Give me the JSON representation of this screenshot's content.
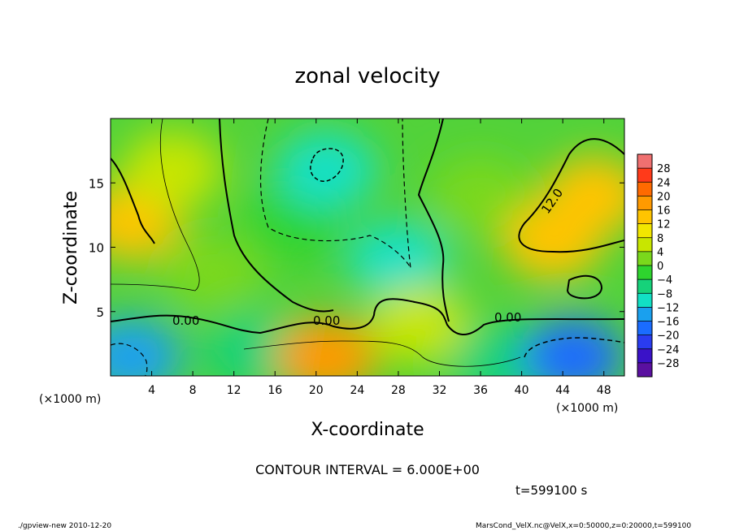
{
  "chart_data": {
    "type": "heatmap",
    "title": "zonal velocity",
    "xlabel": "X-coordinate",
    "ylabel": "Z-coordinate",
    "x_unit_left": "(×1000 m)",
    "x_unit_right": "(×1000 m)",
    "xlim": [
      0,
      50
    ],
    "ylim": [
      0,
      20
    ],
    "x_ticks": [
      "4",
      "8",
      "12",
      "16",
      "20",
      "24",
      "28",
      "32",
      "36",
      "40",
      "44",
      "48"
    ],
    "y_ticks": [
      "5",
      "10",
      "15"
    ],
    "colorbar_ticks": [
      "28",
      "24",
      "20",
      "16",
      "12",
      "8",
      "4",
      "0",
      "−4",
      "−8",
      "−12",
      "−16",
      "−20",
      "−24",
      "−28"
    ],
    "colorbar_range": [
      -30,
      30
    ],
    "colorbar_colors": [
      "#f07070",
      "#ff3a1a",
      "#ff6a00",
      "#ff9a00",
      "#ffc400",
      "#f2e600",
      "#c8e600",
      "#7ad81c",
      "#2ed42e",
      "#16d27a",
      "#12e0c4",
      "#1aa0ee",
      "#1a6cff",
      "#2a3cf0",
      "#3a12c8",
      "#5a10a0"
    ],
    "contour_interval_text": "CONTOUR INTERVAL = 6.000E+00",
    "contour_labels": [
      "0.00",
      "0.00",
      "0.00",
      "0.00",
      "12.0"
    ],
    "annotation_time": "t=599100 s",
    "footer_left": "./gpview-new  2010-12-20",
    "footer_right": "MarsCond_VelX.nc@VelX,x=0:50000,z=0:20000,t=599100",
    "field_samples": [
      {
        "x": 2,
        "z": 1.5,
        "v": -14
      },
      {
        "x": 2,
        "z": 12,
        "v": 13
      },
      {
        "x": 6,
        "z": 16,
        "v": 6
      },
      {
        "x": 10,
        "z": 8,
        "v": 2
      },
      {
        "x": 14,
        "z": 2,
        "v": -6
      },
      {
        "x": 18,
        "z": 12,
        "v": -2
      },
      {
        "x": 21,
        "z": 1.5,
        "v": 16
      },
      {
        "x": 21,
        "z": 16,
        "v": -10
      },
      {
        "x": 28,
        "z": 9,
        "v": -8
      },
      {
        "x": 30,
        "z": 4,
        "v": 5
      },
      {
        "x": 36,
        "z": 14,
        "v": 2
      },
      {
        "x": 38,
        "z": 1,
        "v": -4
      },
      {
        "x": 43,
        "z": 10.5,
        "v": 15
      },
      {
        "x": 45,
        "z": 1.5,
        "v": -15
      },
      {
        "x": 47,
        "z": 14,
        "v": 14
      }
    ]
  }
}
